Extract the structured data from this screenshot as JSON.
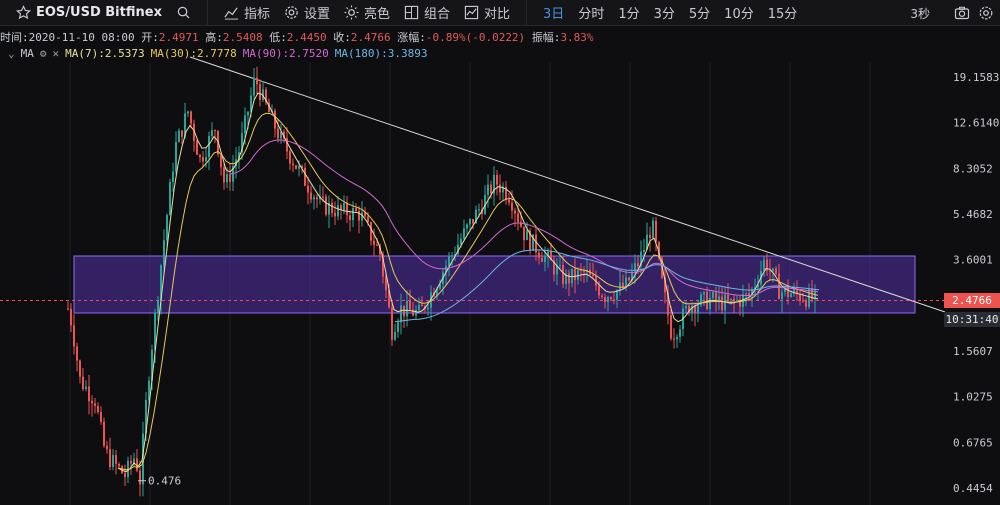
{
  "toolbar": {
    "symbol": "EOS/USD Bitfinex",
    "indicators": "指标",
    "settings": "设置",
    "theme": "亮色",
    "combine": "组合",
    "compare": "对比",
    "intervals": [
      "3日",
      "分时",
      "1分",
      "3分",
      "5分",
      "10分",
      "15分"
    ],
    "active_interval": "3日",
    "refresh": "3秒"
  },
  "ohlc": {
    "time_label": "时间:",
    "time": "2020-11-10 08:00",
    "open_label": "开:",
    "open": "2.4971",
    "high_label": "高:",
    "high": "2.5408",
    "low_label": "低:",
    "low": "2.4450",
    "close_label": "收:",
    "close": "2.4766",
    "change_label": "涨幅:",
    "change": "-0.89%(-0.0222)",
    "amp_label": "振幅:",
    "amp": "3.83%"
  },
  "ma": {
    "name": "MA",
    "ma7": "MA(7):2.5373",
    "ma30": "MA(30):2.7778",
    "ma90": "MA(90):2.7520",
    "ma180": "MA(180):3.3893",
    "colors": {
      "ma7": "#e8e0a0",
      "ma30": "#e8c85a",
      "ma90": "#d46ad0",
      "ma180": "#6ab8e8"
    }
  },
  "axis": {
    "ticks": [
      "19.1583",
      "12.6140",
      "8.3052",
      "5.4682",
      "3.6001",
      "2.4766",
      "1.5607",
      "1.0275",
      "0.6765",
      "0.4454"
    ],
    "current_price": "2.4766",
    "countdown": "10:31:40",
    "low_annotation": "0.476"
  },
  "colors": {
    "up": "#26a69a",
    "down": "#ef5350",
    "box": "#6a3bd6",
    "trend": "#d9d9d9"
  },
  "chart_data": {
    "type": "candlestick",
    "title": "EOS/USD Bitfinex",
    "y_scale": "log",
    "ylim": [
      0.4454,
      19.1583
    ],
    "y_ticks": [
      19.1583,
      12.614,
      8.3052,
      5.4682,
      3.6001,
      1.5607,
      1.0275,
      0.6765,
      0.4454
    ],
    "last_price": 2.4766,
    "annotations": [
      {
        "text": "0.476",
        "value": 0.476
      }
    ],
    "series": [
      {
        "name": "MA(7)",
        "values": [
          2.5373
        ]
      },
      {
        "name": "MA(30)",
        "values": [
          2.7778
        ]
      },
      {
        "name": "MA(90)",
        "values": [
          2.752
        ]
      },
      {
        "name": "MA(180)",
        "values": [
          3.3893
        ]
      }
    ]
  }
}
